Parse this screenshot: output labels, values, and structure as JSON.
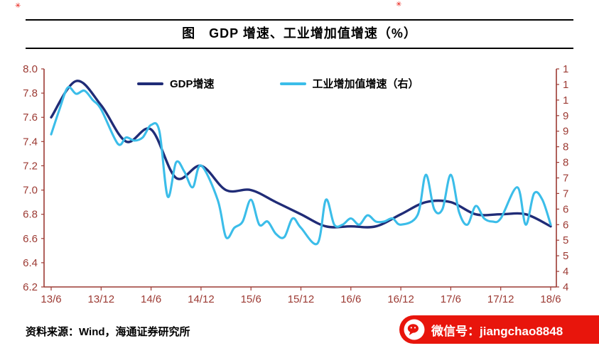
{
  "header": {
    "title": "图　GDP 增速、工业增加值增速（%）"
  },
  "footer": {
    "source_text": "资料来源：Wind，海通证券研究所",
    "wechat_label": "微信号：jiangchao8848"
  },
  "decorations": {
    "top_left_mark": "✳",
    "top_mid_mark": "✳"
  },
  "colors": {
    "gdp_line": "#202C77",
    "ip_line": "#3BBDE9",
    "axis": "#9C3A33",
    "banner_red": "#E8150C",
    "title_text": "#000000"
  },
  "chart_data": {
    "type": "line",
    "title": "图　GDP 增速、工业增加值增速（%）",
    "grid": false,
    "legend_position": "top-inside",
    "x_axis": {
      "tick_labels": [
        "13/6",
        "13/12",
        "14/6",
        "14/12",
        "15/6",
        "15/12",
        "16/6",
        "16/12",
        "17/6",
        "17/12",
        "18/6"
      ],
      "unit": "year/month"
    },
    "left_axis": {
      "min": 6.2,
      "max": 8.0,
      "step": 0.2,
      "tick_labels": [
        "8.0",
        "7.8",
        "7.6",
        "7.4",
        "7.2",
        "7.0",
        "6.8",
        "6.6",
        "6.4",
        "6.2"
      ],
      "series": "GDP增速"
    },
    "right_axis": {
      "min": 4,
      "max": 11,
      "step": 0.5,
      "tick_labels": [
        "1",
        "1",
        "1",
        "9",
        "9",
        "8",
        "8",
        "7",
        "7",
        "6",
        "6",
        "5",
        "5",
        "4",
        "4"
      ],
      "note": "labels truncated to first character in source image",
      "series": "工业增加值增速"
    },
    "series": [
      {
        "name": "GDP增速",
        "axis": "left",
        "color": "#202C77",
        "x_months_from_2013_06": [
          0,
          3,
          6,
          9,
          12,
          15,
          18,
          21,
          24,
          27,
          30,
          33,
          36,
          39,
          42,
          45,
          48,
          51,
          54,
          57,
          60
        ],
        "values": [
          7.6,
          7.9,
          7.7,
          7.4,
          7.5,
          7.1,
          7.2,
          7.0,
          7.0,
          6.9,
          6.8,
          6.7,
          6.7,
          6.7,
          6.8,
          6.9,
          6.9,
          6.8,
          6.8,
          6.8,
          6.7
        ]
      },
      {
        "name": "工业增加值增速（右）",
        "axis": "right",
        "color": "#3BBDE9",
        "x_months_from_2013_06": [
          0,
          1,
          2,
          3,
          4,
          5,
          6,
          8,
          9,
          10,
          11,
          12,
          13,
          14,
          15,
          16,
          17,
          18,
          20,
          21,
          22,
          23,
          24,
          25,
          26,
          27,
          28,
          29,
          30,
          32,
          33,
          34,
          35,
          36,
          37,
          38,
          39,
          40,
          41,
          42,
          44,
          45,
          46,
          47,
          48,
          49,
          50,
          51,
          52,
          53,
          54,
          56,
          57,
          58,
          59,
          60
        ],
        "values": [
          8.9,
          9.7,
          10.4,
          10.2,
          10.3,
          10.0,
          9.7,
          8.6,
          8.8,
          8.7,
          8.8,
          9.2,
          9.0,
          6.9,
          8.0,
          7.7,
          7.2,
          7.9,
          6.8,
          5.6,
          5.9,
          6.1,
          6.8,
          6.0,
          6.1,
          5.7,
          5.6,
          6.2,
          5.9,
          5.4,
          6.8,
          6.0,
          6.0,
          6.2,
          6.0,
          6.3,
          6.1,
          6.1,
          6.2,
          6.0,
          6.3,
          7.6,
          6.5,
          6.5,
          7.6,
          6.4,
          6.0,
          6.6,
          6.2,
          6.1,
          6.2,
          7.2,
          6.0,
          7.0,
          6.8,
          6.0
        ]
      }
    ]
  }
}
